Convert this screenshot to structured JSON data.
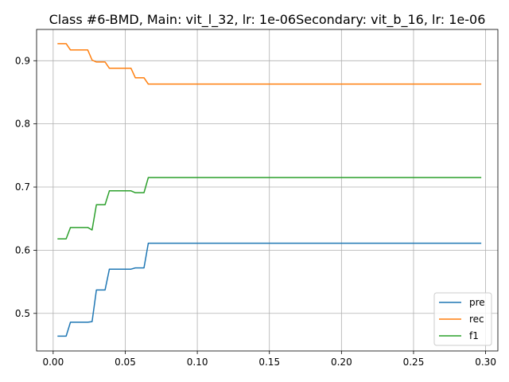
{
  "chart_data": {
    "type": "line",
    "title": "Class #6-BMD, Main: vit_l_32, lr: 1e-06Secondary: vit_b_16, lr: 1e-06",
    "xlabel": "",
    "ylabel": "",
    "xlim": [
      -0.0115,
      0.3085
    ],
    "ylim": [
      0.4405,
      0.9495
    ],
    "x_ticks": [
      0.0,
      0.05,
      0.1,
      0.15,
      0.2,
      0.25,
      0.3
    ],
    "x_tick_labels": [
      "0.00",
      "0.05",
      "0.10",
      "0.15",
      "0.20",
      "0.25",
      "0.30"
    ],
    "y_ticks": [
      0.5,
      0.6,
      0.7,
      0.8,
      0.9
    ],
    "y_tick_labels": [
      "0.5",
      "0.6",
      "0.7",
      "0.8",
      "0.9"
    ],
    "grid": true,
    "legend_position": "lower-right",
    "series": [
      {
        "name": "pre",
        "color": "#1f77b4",
        "points": [
          [
            0.003,
            0.464
          ],
          [
            0.009,
            0.464
          ],
          [
            0.012,
            0.486
          ],
          [
            0.015,
            0.486
          ],
          [
            0.018,
            0.486
          ],
          [
            0.021,
            0.486
          ],
          [
            0.024,
            0.486
          ],
          [
            0.027,
            0.487
          ],
          [
            0.03,
            0.537
          ],
          [
            0.033,
            0.537
          ],
          [
            0.036,
            0.537
          ],
          [
            0.039,
            0.57
          ],
          [
            0.042,
            0.57
          ],
          [
            0.045,
            0.57
          ],
          [
            0.048,
            0.57
          ],
          [
            0.051,
            0.57
          ],
          [
            0.054,
            0.57
          ],
          [
            0.057,
            0.572
          ],
          [
            0.06,
            0.572
          ],
          [
            0.063,
            0.572
          ],
          [
            0.066,
            0.611
          ],
          [
            0.069,
            0.611
          ],
          [
            0.1,
            0.611
          ],
          [
            0.15,
            0.611
          ],
          [
            0.2,
            0.611
          ],
          [
            0.25,
            0.611
          ],
          [
            0.297,
            0.611
          ]
        ]
      },
      {
        "name": "rec",
        "color": "#ff7f0e",
        "points": [
          [
            0.003,
            0.927
          ],
          [
            0.009,
            0.927
          ],
          [
            0.012,
            0.917
          ],
          [
            0.015,
            0.917
          ],
          [
            0.018,
            0.917
          ],
          [
            0.021,
            0.917
          ],
          [
            0.024,
            0.917
          ],
          [
            0.027,
            0.901
          ],
          [
            0.03,
            0.898
          ],
          [
            0.033,
            0.898
          ],
          [
            0.036,
            0.898
          ],
          [
            0.039,
            0.888
          ],
          [
            0.042,
            0.888
          ],
          [
            0.045,
            0.888
          ],
          [
            0.048,
            0.888
          ],
          [
            0.051,
            0.888
          ],
          [
            0.054,
            0.888
          ],
          [
            0.057,
            0.873
          ],
          [
            0.06,
            0.873
          ],
          [
            0.063,
            0.873
          ],
          [
            0.066,
            0.863
          ],
          [
            0.069,
            0.863
          ],
          [
            0.1,
            0.863
          ],
          [
            0.15,
            0.863
          ],
          [
            0.2,
            0.863
          ],
          [
            0.25,
            0.863
          ],
          [
            0.297,
            0.863
          ]
        ]
      },
      {
        "name": "f1",
        "color": "#2ca02c",
        "points": [
          [
            0.003,
            0.618
          ],
          [
            0.009,
            0.618
          ],
          [
            0.012,
            0.636
          ],
          [
            0.015,
            0.636
          ],
          [
            0.018,
            0.636
          ],
          [
            0.021,
            0.636
          ],
          [
            0.024,
            0.636
          ],
          [
            0.027,
            0.632
          ],
          [
            0.03,
            0.672
          ],
          [
            0.033,
            0.672
          ],
          [
            0.036,
            0.672
          ],
          [
            0.039,
            0.694
          ],
          [
            0.042,
            0.694
          ],
          [
            0.045,
            0.694
          ],
          [
            0.048,
            0.694
          ],
          [
            0.051,
            0.694
          ],
          [
            0.054,
            0.694
          ],
          [
            0.057,
            0.691
          ],
          [
            0.06,
            0.691
          ],
          [
            0.063,
            0.691
          ],
          [
            0.066,
            0.715
          ],
          [
            0.069,
            0.715
          ],
          [
            0.1,
            0.715
          ],
          [
            0.15,
            0.715
          ],
          [
            0.2,
            0.715
          ],
          [
            0.25,
            0.715
          ],
          [
            0.297,
            0.715
          ]
        ]
      }
    ]
  }
}
